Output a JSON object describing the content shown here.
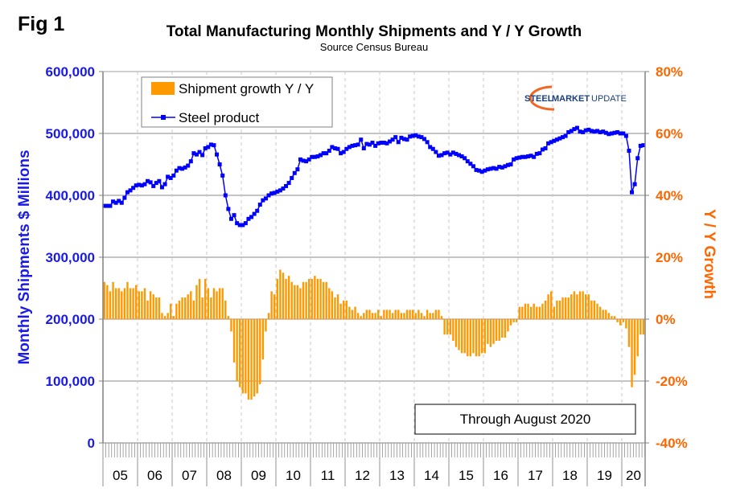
{
  "figure_label": "Fig 1",
  "logo_text": {
    "part1": "STEEL",
    "part2": "MARKET",
    "part3": "UPDATE"
  },
  "colors": {
    "line": "#0000ff",
    "bars": "#ff9900",
    "left_axis": "#1a1ae6",
    "right_axis": "#ff6600"
  },
  "chart_data": {
    "type": "bar+line",
    "title": "Total Manufacturing Monthly Shipments and Y / Y Growth",
    "subtitle": "Source Census Bureau",
    "ylabel_left": "Monthly Shipments $ Millions",
    "ylabel_right": "Y / Y Growth",
    "xlabel": "",
    "annotation": "Through August 2020",
    "legend": [
      "Shipment growth Y / Y",
      "Steel product"
    ],
    "legend_position": "top-left",
    "grid": true,
    "ylim_left": [
      0,
      600000
    ],
    "ylim_right": [
      -40,
      80
    ],
    "yticks_left": [
      "0",
      "100,000",
      "200,000",
      "300,000",
      "400,000",
      "500,000",
      "600,000"
    ],
    "yticks_right": [
      "-40%",
      "-20%",
      "0%",
      "20%",
      "40%",
      "60%",
      "80%"
    ],
    "x_start": "2005-01",
    "x_end": "2020-08",
    "xtick_labels": [
      "05",
      "06",
      "07",
      "08",
      "09",
      "10",
      "11",
      "12",
      "13",
      "14",
      "15",
      "16",
      "17",
      "18",
      "19",
      "20"
    ],
    "series": [
      {
        "name": "Shipment growth Y / Y",
        "type": "bar",
        "axis": "right",
        "unit": "%",
        "values": [
          12,
          11,
          9,
          12,
          10,
          10,
          9,
          10,
          12,
          10,
          10,
          11,
          9,
          9,
          10,
          6,
          9,
          8,
          7,
          7,
          2,
          1,
          2,
          5,
          1,
          5,
          6,
          7,
          7,
          8,
          9,
          6,
          11,
          13,
          7,
          13,
          10,
          7,
          10,
          9,
          10,
          10,
          6,
          1,
          -4,
          -14,
          -20,
          -22,
          -24,
          -24,
          -26,
          -26,
          -25,
          -24,
          -21,
          -13,
          -4,
          2,
          9,
          8,
          13,
          16,
          15,
          13,
          14,
          12,
          11,
          11,
          10,
          12,
          12,
          13,
          13,
          14,
          13,
          13,
          12,
          12,
          10,
          9,
          7,
          8,
          5,
          6,
          6,
          4,
          3,
          4,
          2,
          1,
          2,
          3,
          3,
          2,
          2,
          3,
          1,
          3,
          3,
          3,
          2,
          3,
          3,
          2,
          2,
          3,
          3,
          3,
          2,
          3,
          2,
          1,
          3,
          2,
          2,
          3,
          3,
          1,
          -5,
          -5,
          -5,
          -7,
          -9,
          -10,
          -11,
          -11,
          -12,
          -12,
          -11,
          -12,
          -12,
          -11,
          -11,
          -8,
          -9,
          -8,
          -7,
          -7,
          -6,
          -6,
          -4,
          -2,
          -1,
          -1,
          4,
          4,
          5,
          5,
          4,
          5,
          4,
          4,
          5,
          6,
          8,
          9,
          4,
          6,
          6,
          7,
          7,
          7,
          8,
          9,
          8,
          9,
          9,
          8,
          8,
          6,
          6,
          5,
          4,
          3,
          3,
          2,
          1,
          1,
          -1,
          -2,
          -1,
          -3,
          -9,
          -22,
          -18,
          -12,
          -5,
          -5
        ]
      },
      {
        "name": "Steel product",
        "type": "line",
        "axis": "left",
        "unit": "$ millions",
        "values": [
          383000,
          383000,
          383000,
          390000,
          388000,
          391000,
          388000,
          396000,
          405000,
          408000,
          412000,
          416000,
          417000,
          416000,
          418000,
          423000,
          421000,
          415000,
          420000,
          423000,
          413000,
          418000,
          430000,
          428000,
          432000,
          440000,
          444000,
          443000,
          445000,
          448000,
          455000,
          468000,
          466000,
          470000,
          465000,
          476000,
          478000,
          482000,
          481000,
          466000,
          450000,
          432000,
          400000,
          378000,
          362000,
          368000,
          355000,
          352000,
          352000,
          355000,
          362000,
          365000,
          370000,
          375000,
          385000,
          392000,
          395000,
          400000,
          403000,
          404000,
          406000,
          408000,
          411000,
          415000,
          420000,
          428000,
          436000,
          442000,
          458000,
          456000,
          455000,
          458000,
          462000,
          462000,
          463000,
          465000,
          468000,
          468000,
          472000,
          478000,
          476000,
          475000,
          468000,
          470000,
          475000,
          478000,
          480000,
          481000,
          482000,
          490000,
          476000,
          483000,
          482000,
          485000,
          480000,
          484000,
          485000,
          485000,
          484000,
          487000,
          490000,
          494000,
          486000,
          493000,
          491000,
          490000,
          495000,
          496000,
          497000,
          495000,
          494000,
          491000,
          486000,
          478000,
          475000,
          470000,
          464000,
          465000,
          468000,
          469000,
          466000,
          469000,
          467000,
          465000,
          463000,
          460000,
          455000,
          451000,
          447000,
          441000,
          440000,
          438000,
          440000,
          442000,
          443000,
          444000,
          443000,
          446000,
          445000,
          447000,
          449000,
          450000,
          458000,
          460000,
          461000,
          462000,
          462000,
          463000,
          464000,
          462000,
          467000,
          468000,
          474000,
          476000,
          484000,
          486000,
          488000,
          490000,
          492000,
          494000,
          496000,
          502000,
          504000,
          507000,
          509000,
          503000,
          502000,
          505000,
          506000,
          504000,
          503000,
          504000,
          502000,
          503000,
          501000,
          499000,
          500000,
          501000,
          502000,
          500000,
          500000,
          496000,
          472000,
          405000,
          418000,
          460000,
          480000,
          481000
        ]
      }
    ]
  }
}
